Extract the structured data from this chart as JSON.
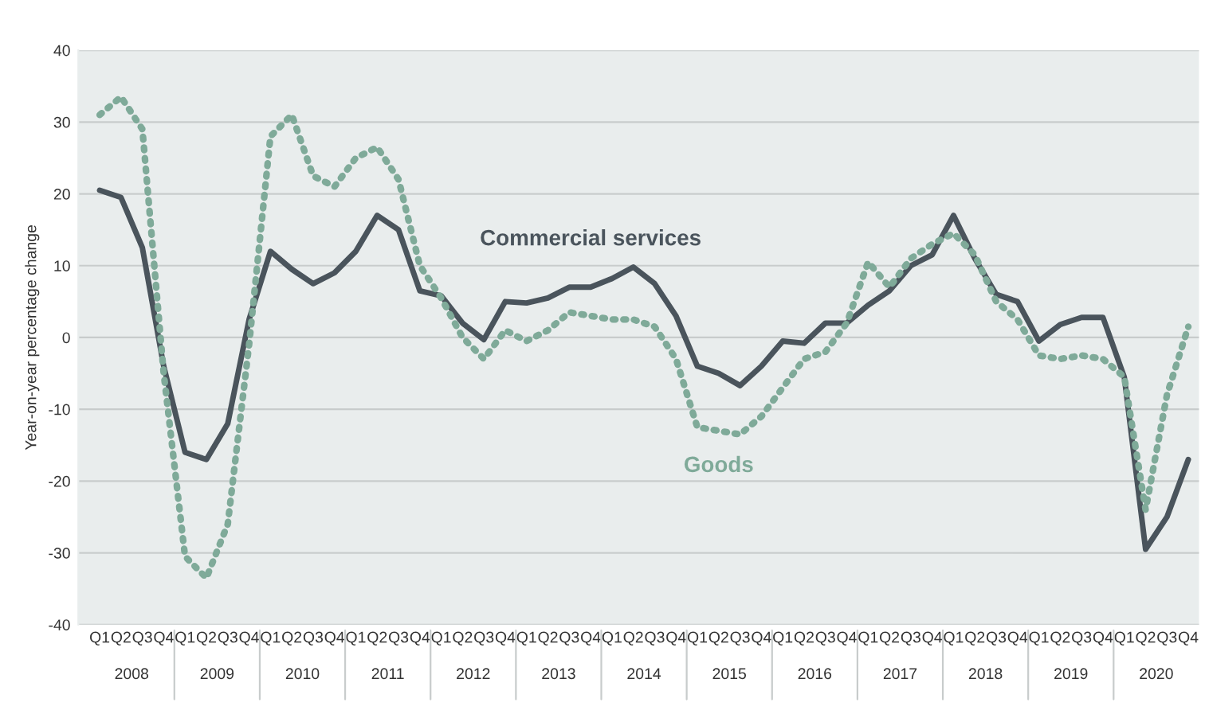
{
  "chart_data": {
    "type": "line",
    "ylabel": "Year-on-year percentage change",
    "categories": [
      "Q1",
      "Q2",
      "Q3",
      "Q4",
      "Q1",
      "Q2",
      "Q3",
      "Q4",
      "Q1",
      "Q2",
      "Q3",
      "Q4",
      "Q1",
      "Q2",
      "Q3",
      "Q4",
      "Q1",
      "Q2",
      "Q3",
      "Q4",
      "Q1",
      "Q2",
      "Q3",
      "Q4",
      "Q1",
      "Q2",
      "Q3",
      "Q4",
      "Q1",
      "Q2",
      "Q3",
      "Q4",
      "Q1",
      "Q2",
      "Q3",
      "Q4",
      "Q1",
      "Q2",
      "Q3",
      "Q4",
      "Q1",
      "Q2",
      "Q3",
      "Q4",
      "Q1",
      "Q2",
      "Q3",
      "Q4",
      "Q1",
      "Q2",
      "Q3",
      "Q4"
    ],
    "series": [
      {
        "name": "Commercial services",
        "color": "#4a545c",
        "line_style": "solid",
        "values": [
          20.5,
          19.5,
          12.5,
          -4,
          -16,
          -17,
          -12,
          2.5,
          12,
          9.5,
          7.5,
          9,
          12,
          17,
          15,
          6.5,
          5.8,
          2,
          -0.3,
          5,
          4.8,
          5.5,
          7,
          7,
          8.2,
          9.8,
          7.5,
          3,
          -4,
          -5,
          -6.7,
          -4,
          -0.5,
          -0.8,
          2,
          2,
          4.5,
          6.5,
          10,
          11.5,
          17,
          11,
          6,
          5,
          -0.5,
          1.8,
          2.8,
          2.8,
          -5.5,
          -29.5,
          -25,
          -17
        ]
      },
      {
        "name": "Goods",
        "color": "#7faa99",
        "line_style": "dotted",
        "values": [
          31,
          33.5,
          29,
          -5,
          -30.5,
          -33.5,
          -26,
          -1,
          28,
          31,
          22.5,
          21,
          25,
          26.5,
          22,
          10,
          5.5,
          0,
          -3,
          1,
          -0.5,
          1,
          3.5,
          3,
          2.5,
          2.5,
          1.5,
          -3,
          -12.5,
          -13,
          -13.5,
          -11,
          -7,
          -3,
          -2,
          2,
          10.5,
          7,
          11,
          13,
          14.5,
          11.5,
          5,
          2.5,
          -2.5,
          -3,
          -2.5,
          -3,
          -5.5,
          -24,
          -8,
          1.5
        ]
      }
    ],
    "ylim": [
      -40,
      40
    ],
    "yticks": [
      -40,
      -30,
      -20,
      -10,
      0,
      10,
      20,
      30,
      40
    ],
    "grid": "y",
    "legend": false,
    "annotations": [
      "2008",
      "2009",
      "2010",
      "2011",
      "2012",
      "2013",
      "2014",
      "2015",
      "2016",
      "2017",
      "2018",
      "2019",
      "2020"
    ]
  }
}
